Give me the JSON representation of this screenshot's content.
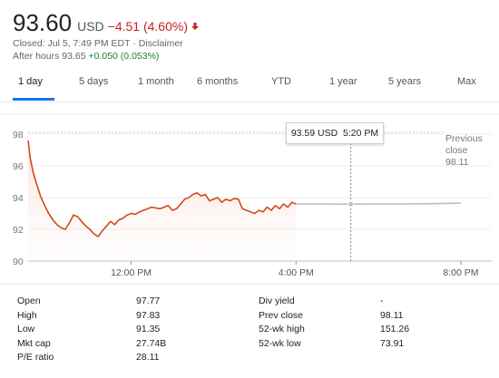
{
  "quote": {
    "price": "93.60",
    "currency": "USD",
    "change": "−4.51 (4.60%)",
    "change_color": "#c5221f",
    "closed_text": "Closed: Jul 5, 7:49 PM EDT · Disclaimer",
    "after_hours_prefix": "After hours 93.65",
    "after_hours_change": "+0.050 (0.053%)",
    "after_hours_color": "#188038"
  },
  "tabs": [
    {
      "label": "1 day",
      "active": true
    },
    {
      "label": "5 days"
    },
    {
      "label": "1 month"
    },
    {
      "label": "6 months"
    },
    {
      "label": "YTD"
    },
    {
      "label": "1 year"
    },
    {
      "label": "5 years"
    },
    {
      "label": "Max"
    }
  ],
  "tooltip": {
    "value": "93.59 USD",
    "time": "5:20 PM"
  },
  "previous_close": {
    "line1": "Previous",
    "line2": "close",
    "value": "98.11"
  },
  "chart_data": {
    "type": "line",
    "y_ticks": [
      "98",
      "96",
      "94",
      "92",
      "90"
    ],
    "ylim": [
      90,
      98
    ],
    "x_ticks": [
      {
        "label": "12:00 PM",
        "hour": 12
      },
      {
        "label": "4:00 PM",
        "hour": 16
      },
      {
        "label": "8:00 PM",
        "hour": 20
      }
    ],
    "xlim_hours": [
      9.5,
      20.75
    ],
    "previous_close": 98.11,
    "hover_hour": 17.33,
    "regular_session": {
      "color": "#d04a1c",
      "points": [
        [
          9.5,
          97.6
        ],
        [
          9.55,
          96.5
        ],
        [
          9.62,
          95.6
        ],
        [
          9.7,
          94.9
        ],
        [
          9.8,
          94.1
        ],
        [
          9.9,
          93.5
        ],
        [
          10.0,
          93.0
        ],
        [
          10.1,
          92.6
        ],
        [
          10.2,
          92.3
        ],
        [
          10.3,
          92.1
        ],
        [
          10.4,
          92.0
        ],
        [
          10.5,
          92.4
        ],
        [
          10.6,
          92.9
        ],
        [
          10.7,
          92.8
        ],
        [
          10.8,
          92.5
        ],
        [
          10.9,
          92.2
        ],
        [
          11.0,
          92.0
        ],
        [
          11.1,
          91.7
        ],
        [
          11.2,
          91.55
        ],
        [
          11.3,
          91.9
        ],
        [
          11.4,
          92.2
        ],
        [
          11.5,
          92.5
        ],
        [
          11.6,
          92.3
        ],
        [
          11.7,
          92.6
        ],
        [
          11.8,
          92.7
        ],
        [
          11.9,
          92.9
        ],
        [
          12.0,
          93.0
        ],
        [
          12.1,
          92.95
        ],
        [
          12.2,
          93.1
        ],
        [
          12.3,
          93.2
        ],
        [
          12.4,
          93.3
        ],
        [
          12.5,
          93.4
        ],
        [
          12.6,
          93.35
        ],
        [
          12.7,
          93.3
        ],
        [
          12.8,
          93.4
        ],
        [
          12.9,
          93.5
        ],
        [
          13.0,
          93.2
        ],
        [
          13.1,
          93.3
        ],
        [
          13.2,
          93.6
        ],
        [
          13.3,
          93.9
        ],
        [
          13.4,
          94.0
        ],
        [
          13.5,
          94.2
        ],
        [
          13.6,
          94.3
        ],
        [
          13.7,
          94.1
        ],
        [
          13.8,
          94.2
        ],
        [
          13.9,
          93.8
        ],
        [
          14.0,
          93.9
        ],
        [
          14.1,
          94.0
        ],
        [
          14.2,
          93.7
        ],
        [
          14.3,
          93.9
        ],
        [
          14.4,
          93.8
        ],
        [
          14.5,
          93.95
        ],
        [
          14.6,
          93.9
        ],
        [
          14.7,
          93.3
        ],
        [
          14.8,
          93.2
        ],
        [
          14.9,
          93.1
        ],
        [
          15.0,
          93.0
        ],
        [
          15.1,
          93.2
        ],
        [
          15.2,
          93.1
        ],
        [
          15.3,
          93.4
        ],
        [
          15.4,
          93.2
        ],
        [
          15.5,
          93.5
        ],
        [
          15.6,
          93.3
        ],
        [
          15.7,
          93.6
        ],
        [
          15.8,
          93.4
        ],
        [
          15.9,
          93.7
        ],
        [
          16.0,
          93.6
        ]
      ]
    },
    "after_hours": {
      "color": "#bdbdbd",
      "points": [
        [
          16.0,
          93.6
        ],
        [
          17.33,
          93.59
        ],
        [
          18.5,
          93.6
        ],
        [
          19.5,
          93.62
        ],
        [
          20.0,
          93.65
        ]
      ]
    }
  },
  "stats": {
    "left": [
      {
        "label": "Open",
        "value": "97.77"
      },
      {
        "label": "High",
        "value": "97.83"
      },
      {
        "label": "Low",
        "value": "91.35"
      },
      {
        "label": "Mkt cap",
        "value": "27.74B"
      },
      {
        "label": "P/E ratio",
        "value": "28.11"
      }
    ],
    "right": [
      {
        "label": "Div yield",
        "value": "-"
      },
      {
        "label": "Prev close",
        "value": "98.11"
      },
      {
        "label": "52-wk high",
        "value": "151.26"
      },
      {
        "label": "52-wk low",
        "value": "73.91"
      }
    ]
  }
}
